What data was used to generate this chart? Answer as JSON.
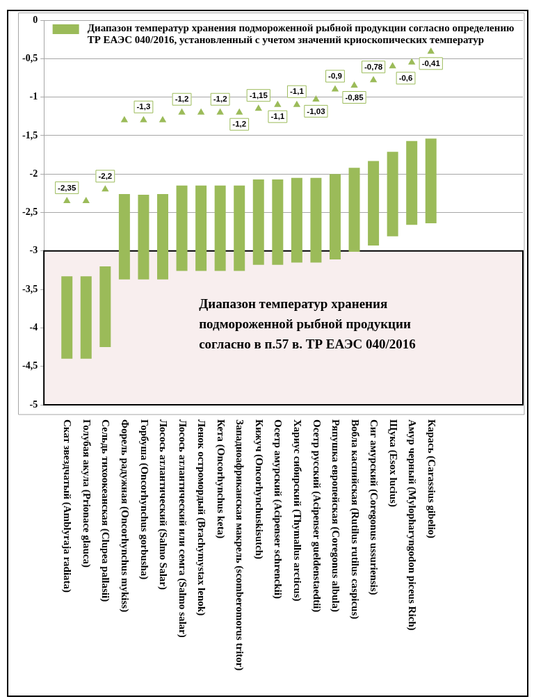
{
  "chart_data": {
    "type": "bar",
    "categories": [
      "Скат звездчатый (Amblyraja radiata)",
      "Голубая акула (Prionace glauca)",
      "Сельдь тихоокеанская (Clupea pallasii)",
      "Форель радужная (Oncorhynchus mykiss)",
      "Горбуша (Oncorhynchus gorbusha)",
      "Лосось атлантический (Salmo Salar)",
      "Лосось атлантический или семга (Salmo salar)",
      "Ленок остромордый (Brachymystax lenok)",
      "Кета (Oncorhynchus keta)",
      "Западноафриканская макрель (scomberomorus tritor)",
      "Кижуч (Oncorhynchuskisutch)",
      "Осетр амурский (Acipenser schrenckii)",
      "Хариус сибирский (Thymallus arcticus)",
      "Осетр русский (Acipenser gueldenstaedtii)",
      "Ряпушка европейская (Coregonus albula)",
      "Вобла каспийская (Rutilus rutilus caspicus)",
      "Сиг амурский (Coregonus ussuriensis)",
      "Щука (Esox lucius)",
      "Амур черный (Mylopharyngodon piceus Rich)",
      "Карась (Carassius gibelio)"
    ],
    "series": [
      {
        "name": "Диапазон температур хранения подмороженной рыбной продукции согласно определению ТР ЕАЭС 040/2016, установленный с учетом значений криоскопических температур",
        "color": "#9bbb59",
        "base": [
          -4.4,
          -4.4,
          -4.25,
          -3.37,
          -3.37,
          -3.37,
          -3.26,
          -3.26,
          -3.26,
          -3.26,
          -3.18,
          -3.18,
          -3.15,
          -3.15,
          -3.11,
          -3.01,
          -2.93,
          -2.81,
          -2.66,
          -2.64
        ],
        "values": [
          1.07,
          1.07,
          1.05,
          1.11,
          1.1,
          1.11,
          1.11,
          1.11,
          1.11,
          1.11,
          1.11,
          1.11,
          1.1,
          1.1,
          1.11,
          1.09,
          1.1,
          1.1,
          1.09,
          1.1
        ]
      },
      {
        "type": "scatter",
        "color": "#9bbb59",
        "marker": "triangle",
        "values": [
          -2.35,
          -2.35,
          -2.2,
          -1.3,
          -1.3,
          -1.3,
          -1.2,
          -1.2,
          -1.2,
          -1.2,
          -1.15,
          -1.1,
          -1.1,
          -1.03,
          -0.9,
          -0.85,
          -0.78,
          -0.6,
          -0.55,
          -0.41
        ],
        "value_labels": [
          "-2,35",
          null,
          "-2,2",
          null,
          "-1,3",
          null,
          "-1,2",
          null,
          "-1,2",
          "-1,2",
          "-1,15",
          "-1,1",
          "-1,1",
          "-1,03",
          "-0,9",
          "-0,85",
          "-0,78",
          "-0,6",
          null,
          "-0,41"
        ]
      }
    ],
    "ylim": [
      -5,
      0
    ],
    "yticks": [
      0,
      {
        "value": -0.5,
        "label": "-0,5"
      },
      -1,
      {
        "value": -1.5,
        "label": "-1,5"
      },
      -2,
      {
        "value": -2.5,
        "label": "-2,5"
      },
      -3,
      {
        "value": -3.5,
        "label": "-3,5"
      },
      -4,
      {
        "value": -4.5,
        "label": "-4,5"
      },
      -5
    ],
    "bands": [
      {
        "axis": "y",
        "from": -3,
        "to": -5,
        "color": "#f8eeee",
        "label": "Диапазон температур хранения подмороженной рыбной продукции согласно в п.57 в. ТР ЕАЭС 040/2016"
      }
    ],
    "grid": "y",
    "legend": "top"
  }
}
